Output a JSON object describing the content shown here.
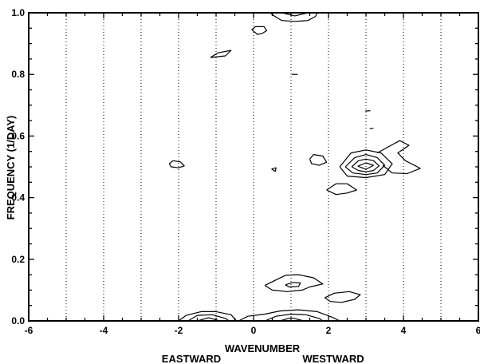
{
  "chart_data": {
    "type": "contour",
    "title": "",
    "xlabel": "WAVENUMBER",
    "ylabel": "FREQUENCY (1/DAY)",
    "direction_labels": {
      "left": "EASTWARD",
      "right": "WESTWARD"
    },
    "xlim": [
      -6,
      6
    ],
    "ylim": [
      0,
      1.0
    ],
    "xticks": [
      -6,
      -4,
      -2,
      0,
      2,
      4,
      6
    ],
    "yticks": [
      0.0,
      0.2,
      0.4,
      0.6,
      0.8,
      1.0
    ],
    "xtick_labels": [
      "-6",
      "-4",
      "-2",
      "0",
      "2",
      "4",
      "6"
    ],
    "ytick_labels": [
      "0.0",
      "0.2",
      "0.4",
      "0.6",
      "0.8",
      "1.0"
    ],
    "vertical_gridlines_at": [
      -5,
      -4,
      -3,
      -2,
      -1,
      0,
      1,
      2,
      3,
      4,
      5
    ],
    "grid_style": "dotted",
    "features": [
      {
        "label": "peak (3, 0.50)",
        "levels": [
          [
            [
              2.3,
              0.5
            ],
            [
              2.6,
              0.545
            ],
            [
              3.0,
              0.555
            ],
            [
              3.4,
              0.545
            ],
            [
              3.7,
              0.51
            ],
            [
              3.5,
              0.475
            ],
            [
              3.0,
              0.465
            ],
            [
              2.5,
              0.47
            ],
            [
              2.3,
              0.5
            ]
          ],
          [
            [
              2.45,
              0.5
            ],
            [
              2.7,
              0.53
            ],
            [
              3.0,
              0.54
            ],
            [
              3.3,
              0.53
            ],
            [
              3.5,
              0.505
            ],
            [
              3.3,
              0.48
            ],
            [
              3.0,
              0.475
            ],
            [
              2.65,
              0.48
            ],
            [
              2.45,
              0.5
            ]
          ],
          [
            [
              2.62,
              0.5
            ],
            [
              2.8,
              0.52
            ],
            [
              3.0,
              0.525
            ],
            [
              3.2,
              0.52
            ],
            [
              3.35,
              0.503
            ],
            [
              3.2,
              0.488
            ],
            [
              3.0,
              0.484
            ],
            [
              2.8,
              0.488
            ],
            [
              2.62,
              0.5
            ]
          ],
          [
            [
              2.78,
              0.502
            ],
            [
              3.0,
              0.513
            ],
            [
              3.2,
              0.505
            ],
            [
              3.0,
              0.492
            ],
            [
              2.78,
              0.502
            ]
          ]
        ]
      },
      {
        "label": "tail (3.5, 0.55)",
        "levels": [
          [
            [
              3.3,
              0.545
            ],
            [
              3.6,
              0.565
            ],
            [
              3.9,
              0.585
            ],
            [
              4.15,
              0.57
            ],
            [
              3.85,
              0.545
            ],
            [
              4.05,
              0.52
            ],
            [
              4.45,
              0.495
            ],
            [
              4.1,
              0.478
            ],
            [
              3.7,
              0.48
            ],
            [
              3.45,
              0.505
            ]
          ]
        ]
      },
      {
        "label": "blob (2.3, 0.43)",
        "levels": [
          [
            [
              1.95,
              0.425
            ],
            [
              2.2,
              0.445
            ],
            [
              2.5,
              0.445
            ],
            [
              2.75,
              0.425
            ],
            [
              2.5,
              0.415
            ],
            [
              2.2,
              0.41
            ],
            [
              1.95,
              0.425
            ]
          ]
        ]
      },
      {
        "label": "blob (1.7, 0.52)",
        "levels": [
          [
            [
              1.5,
              0.525
            ],
            [
              1.6,
              0.54
            ],
            [
              1.85,
              0.535
            ],
            [
              1.95,
              0.515
            ],
            [
              1.75,
              0.505
            ],
            [
              1.55,
              0.51
            ],
            [
              1.5,
              0.525
            ]
          ]
        ]
      },
      {
        "label": "blob (-2.1, 0.51)",
        "levels": [
          [
            [
              -2.25,
              0.51
            ],
            [
              -2.15,
              0.52
            ],
            [
              -1.95,
              0.516
            ],
            [
              -1.85,
              0.503
            ],
            [
              -2.0,
              0.497
            ],
            [
              -2.2,
              0.5
            ],
            [
              -2.25,
              0.51
            ]
          ]
        ]
      },
      {
        "label": "tiny (0.55, 0.49)",
        "levels": [
          [
            [
              0.48,
              0.493
            ],
            [
              0.6,
              0.497
            ],
            [
              0.58,
              0.485
            ],
            [
              0.48,
              0.493
            ]
          ]
        ]
      },
      {
        "label": "blob (-0.9, 0.86)",
        "levels": [
          [
            [
              -1.15,
              0.855
            ],
            [
              -0.95,
              0.87
            ],
            [
              -0.6,
              0.878
            ],
            [
              -0.75,
              0.86
            ],
            [
              -1.15,
              0.855
            ]
          ]
        ]
      },
      {
        "label": "blob (0.15, 0.945)",
        "levels": [
          [
            [
              -0.05,
              0.945
            ],
            [
              0.05,
              0.955
            ],
            [
              0.28,
              0.955
            ],
            [
              0.35,
              0.942
            ],
            [
              0.22,
              0.932
            ],
            [
              0.1,
              0.93
            ],
            [
              -0.05,
              0.945
            ]
          ]
        ]
      },
      {
        "label": "top band",
        "levels": [
          [
            [
              0.45,
              1.0
            ],
            [
              0.55,
              0.99
            ],
            [
              0.75,
              0.975
            ],
            [
              1.1,
              0.972
            ],
            [
              1.45,
              0.975
            ],
            [
              1.65,
              0.988
            ],
            [
              1.7,
              1.0
            ]
          ],
          [
            [
              0.75,
              1.0
            ],
            [
              1.1,
              0.99
            ],
            [
              1.45,
              1.0
            ]
          ]
        ]
      },
      {
        "label": "blob (1.1, 0.12)",
        "levels": [
          [
            [
              0.3,
              0.115
            ],
            [
              0.55,
              0.13
            ],
            [
              0.85,
              0.148
            ],
            [
              1.2,
              0.15
            ],
            [
              1.6,
              0.14
            ],
            [
              1.85,
              0.12
            ],
            [
              1.5,
              0.11
            ],
            [
              1.3,
              0.1
            ],
            [
              0.9,
              0.095
            ],
            [
              0.5,
              0.1
            ],
            [
              0.3,
              0.115
            ]
          ],
          [
            [
              0.85,
              0.117
            ],
            [
              1.05,
              0.125
            ],
            [
              1.25,
              0.123
            ],
            [
              1.2,
              0.112
            ],
            [
              0.95,
              0.11
            ],
            [
              0.85,
              0.117
            ]
          ]
        ]
      },
      {
        "label": "blob (2.4, 0.075)",
        "levels": [
          [
            [
              1.9,
              0.075
            ],
            [
              2.15,
              0.09
            ],
            [
              2.55,
              0.095
            ],
            [
              2.85,
              0.085
            ],
            [
              2.7,
              0.07
            ],
            [
              2.35,
              0.06
            ],
            [
              2.05,
              0.063
            ],
            [
              1.9,
              0.075
            ]
          ]
        ]
      },
      {
        "label": "base band left",
        "levels": [
          [
            [
              -2.0,
              0.0
            ],
            [
              -1.8,
              0.018
            ],
            [
              -1.4,
              0.03
            ],
            [
              -1.0,
              0.03
            ],
            [
              -0.6,
              0.02
            ],
            [
              -0.45,
              0.0
            ]
          ],
          [
            [
              -1.75,
              0.0
            ],
            [
              -1.5,
              0.018
            ],
            [
              -1.1,
              0.02
            ],
            [
              -0.75,
              0.008
            ],
            [
              -0.65,
              0.0
            ]
          ],
          [
            [
              -1.5,
              0.0
            ],
            [
              -1.2,
              0.01
            ],
            [
              -0.9,
              0.0
            ]
          ]
        ]
      },
      {
        "label": "base band right",
        "levels": [
          [
            [
              -0.4,
              0.0
            ],
            [
              -0.15,
              0.015
            ],
            [
              0.3,
              0.022
            ],
            [
              0.7,
              0.032
            ],
            [
              1.2,
              0.036
            ],
            [
              1.7,
              0.03
            ],
            [
              2.1,
              0.012
            ],
            [
              2.3,
              0.0
            ]
          ],
          [
            [
              0.3,
              0.0
            ],
            [
              0.6,
              0.015
            ],
            [
              1.0,
              0.022
            ],
            [
              1.4,
              0.02
            ],
            [
              1.75,
              0.008
            ],
            [
              1.85,
              0.0
            ]
          ],
          [
            [
              0.7,
              0.0
            ],
            [
              1.0,
              0.01
            ],
            [
              1.35,
              0.0
            ]
          ]
        ]
      },
      {
        "label": "tick (1.1, 0.80)",
        "levels": [
          [
            [
              1.02,
              0.8
            ],
            [
              1.18,
              0.8
            ]
          ]
        ]
      },
      {
        "label": "tick (3.1, 0.68)",
        "levels": [
          [
            [
              2.98,
              0.681
            ],
            [
              3.12,
              0.682
            ]
          ]
        ]
      },
      {
        "label": "tick (3.15, 0.625)",
        "levels": [
          [
            [
              3.1,
              0.624
            ],
            [
              3.2,
              0.625
            ]
          ]
        ]
      }
    ]
  }
}
